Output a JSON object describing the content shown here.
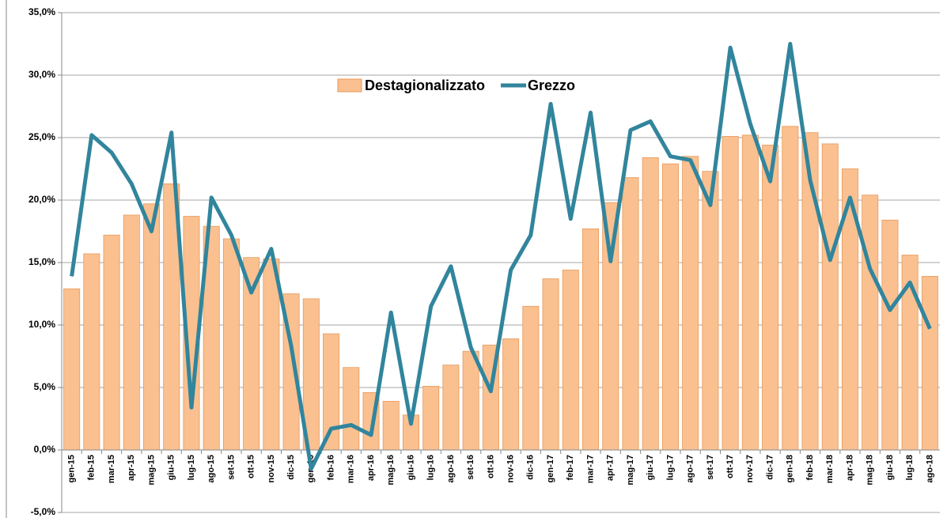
{
  "chart_data": {
    "type": "bar",
    "categories": [
      "gen-15",
      "feb-15",
      "mar-15",
      "apr-15",
      "mag-15",
      "giu-15",
      "lug-15",
      "ago-15",
      "set-15",
      "ott-15",
      "nov-15",
      "dic-15",
      "gen-16",
      "feb-16",
      "mar-16",
      "apr-16",
      "mag-16",
      "giu-16",
      "lug-16",
      "ago-16",
      "set-16",
      "ott-16",
      "nov-16",
      "dic-16",
      "gen-17",
      "feb-17",
      "mar-17",
      "apr-17",
      "mag-17",
      "giu-17",
      "lug-17",
      "ago-17",
      "set-17",
      "ott-17",
      "nov-17",
      "dic-17",
      "gen-18",
      "feb-18",
      "mar-18",
      "apr-18",
      "mag-18",
      "giu-18",
      "lug-18",
      "ago-18"
    ],
    "series": [
      {
        "name": "Destagionalizzato",
        "type": "bar",
        "color": "#FAC090",
        "values": [
          12.9,
          15.7,
          17.2,
          18.8,
          19.7,
          21.3,
          18.7,
          17.9,
          16.9,
          15.4,
          15.3,
          12.5,
          12.1,
          9.3,
          6.6,
          4.6,
          3.9,
          2.8,
          5.1,
          6.8,
          7.9,
          8.4,
          8.9,
          11.5,
          13.7,
          14.4,
          17.7,
          19.8,
          21.8,
          23.4,
          22.9,
          23.5,
          22.3,
          25.1,
          25.2,
          24.4,
          25.9,
          25.4,
          24.5,
          22.5,
          20.4,
          18.4,
          15.6,
          13.9
        ]
      },
      {
        "name": "Grezzo",
        "type": "line",
        "color": "#31859C",
        "values": [
          13.9,
          25.2,
          23.8,
          21.3,
          17.5,
          25.4,
          3.4,
          20.2,
          17.2,
          12.6,
          16.1,
          8.3,
          -1.5,
          1.7,
          2.0,
          1.2,
          11.0,
          2.1,
          11.5,
          14.7,
          8.2,
          4.7,
          14.4,
          17.2,
          27.7,
          18.5,
          27.0,
          15.1,
          25.6,
          26.3,
          23.5,
          23.2,
          19.6,
          32.2,
          26.1,
          21.5,
          32.5,
          21.6,
          15.2,
          20.2,
          14.5,
          11.2,
          13.4,
          9.7
        ]
      }
    ],
    "ylim": [
      -5,
      35
    ],
    "yticks": [
      {
        "value": -5,
        "label": "-5,0%"
      },
      {
        "value": 0,
        "label": "0,0%"
      },
      {
        "value": 5,
        "label": "5,0%"
      },
      {
        "value": 10,
        "label": "10,0%"
      },
      {
        "value": 15,
        "label": "15,0%"
      },
      {
        "value": 20,
        "label": "20,0%"
      },
      {
        "value": 25,
        "label": "25,0%"
      },
      {
        "value": 30,
        "label": "30,0%"
      },
      {
        "value": 35,
        "label": "35,0%"
      }
    ],
    "grid": true
  }
}
